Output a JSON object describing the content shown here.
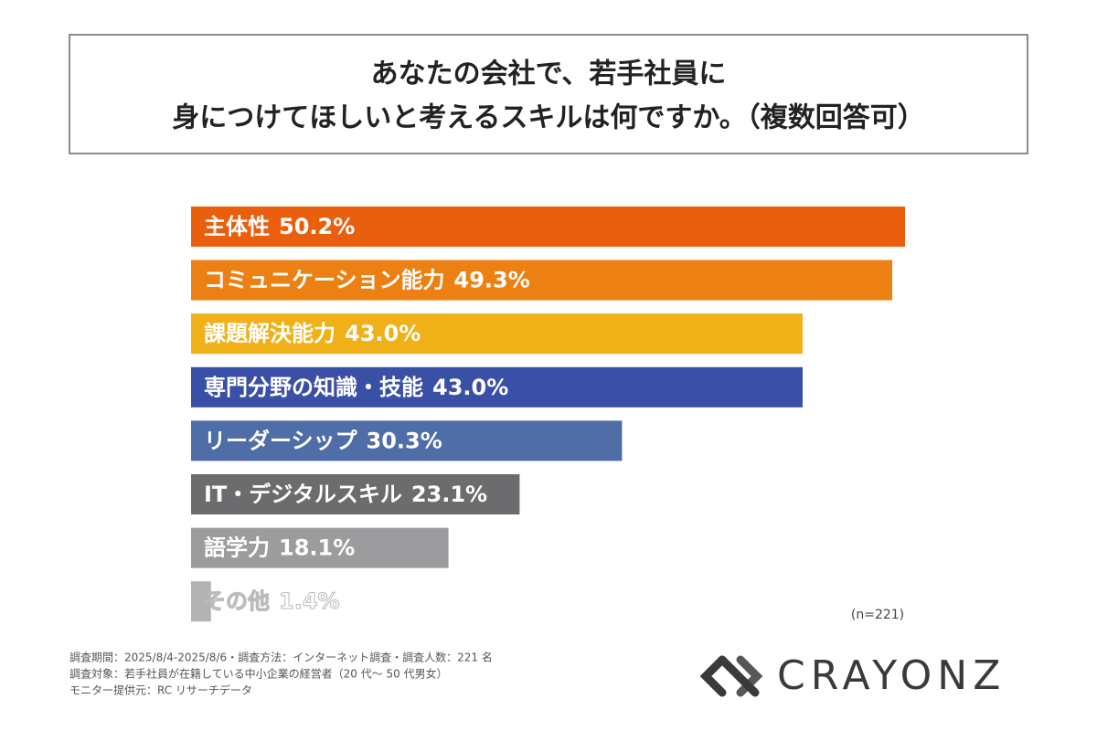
{
  "chart_data": {
    "type": "bar",
    "orientation": "horizontal",
    "title": [
      "あなたの会社で、若手社員に",
      "身につけてほしいと考えるスキルは何ですか。（複数回答可）"
    ],
    "categories": [
      "主体性",
      "コミュニケーション能力",
      "課題解決能力",
      "専門分野の知識・技能",
      "リーダーシップ",
      "IT・デジタルスキル",
      "語学力",
      "その他"
    ],
    "values": [
      50.2,
      49.3,
      43.0,
      43.0,
      30.3,
      23.1,
      18.1,
      1.4
    ],
    "value_labels": [
      "50.2%",
      "49.3%",
      "43.0%",
      "43.0%",
      "30.3%",
      "23.1%",
      "18.1%",
      "1.4%"
    ],
    "colors": [
      "#ea5f0d",
      "#ed8012",
      "#f0b118",
      "#3a4fa6",
      "#4f6ea8",
      "#6c6b6d",
      "#9c9b9d",
      "#b3b2b4"
    ],
    "sample_note": "(n=221)",
    "footnotes": [
      "調査期間：2025/8/4-2025/8/6・調査方法：インターネット調査・調査人数：221 名",
      "調査対象：若手社員が在籍している中小企業の経営者（20 代～ 50 代男女）",
      "モニター提供元：RC リサーチデータ"
    ],
    "brand": "CRAYONZ"
  }
}
